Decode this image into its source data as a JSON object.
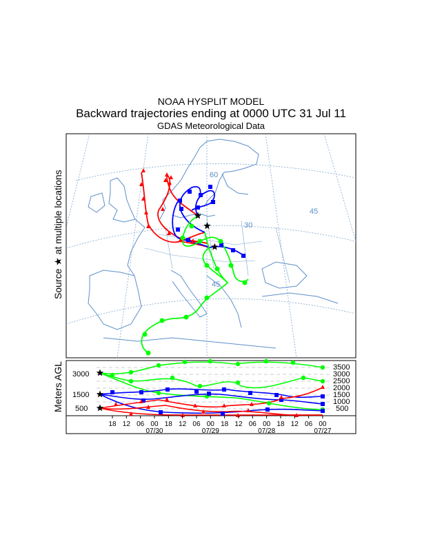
{
  "header": {
    "line1": "NOAA HYSPLIT MODEL",
    "line2": "Backward trajectories ending at 0000 UTC 31 Jul 11",
    "line3": "GDAS Meteorological Data"
  },
  "side_labels": {
    "map": "Source ★ at multiple locations",
    "height": "Meters AGL"
  },
  "map": {
    "graticule_labels": [
      "60",
      "30",
      "45",
      "45"
    ],
    "source_locations": [
      {
        "lon": 17.0,
        "lat": 54.4
      },
      {
        "lon": 18.6,
        "lat": 53.0
      },
      {
        "lon": 19.9,
        "lat": 50.1
      }
    ]
  },
  "height_panel": {
    "left_labels": [
      "3000",
      "1500",
      "500"
    ],
    "right_labels": [
      "3500",
      "3000",
      "2500",
      "2000",
      "1500",
      "1000",
      "500"
    ],
    "hour_ticks": [
      "18",
      "12",
      "06",
      "00",
      "18",
      "12",
      "06",
      "00",
      "18",
      "12",
      "06",
      "00",
      "18",
      "12",
      "06",
      "00"
    ],
    "date_ticks": [
      "07/30",
      "07/29",
      "07/28",
      "07/27"
    ]
  },
  "series_colors": {
    "low": "#ff0000",
    "mid": "#0000ff",
    "high": "#00ff00"
  }
}
